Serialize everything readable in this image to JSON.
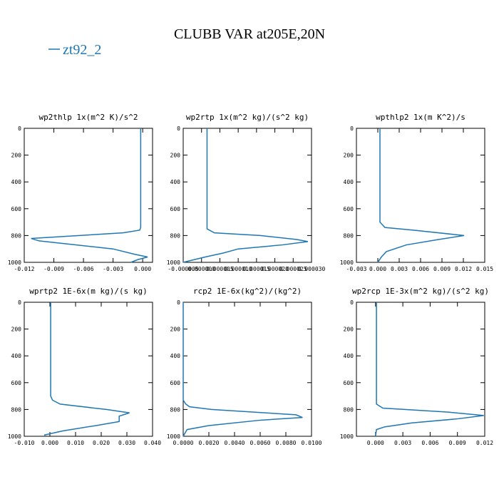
{
  "title": "CLUBB VAR at205E,20N",
  "legend": {
    "label": "zt92_2",
    "color": "#1f77b4"
  },
  "chart_data": [
    {
      "type": "line",
      "title": "wp2thlp  1x(m^2 K)/s^2",
      "color": "#1f77b4",
      "y": [
        0,
        740,
        760,
        780,
        822,
        840,
        900,
        940,
        960,
        980,
        1000
      ],
      "values": [
        -0.0002,
        -0.0002,
        -0.0003,
        -0.002,
        -0.0113,
        -0.0105,
        -0.003,
        -0.0008,
        0.0005,
        -0.0005,
        -0.0012
      ],
      "xlim": [
        -0.012,
        0.001
      ],
      "ylim": [
        1000,
        0
      ],
      "xticks": [
        -0.012,
        -0.009,
        -0.006,
        -0.003,
        {
          "value": 0,
          "label": "0.000"
        }
      ],
      "yticks": [
        0,
        200,
        400,
        600,
        800,
        1000
      ]
    },
    {
      "type": "line",
      "title": "wp2rtp  1x(m^2 kg)/(s^2 kg)",
      "color": "#1f77b4",
      "y": [
        0,
        750,
        780,
        800,
        830,
        845,
        870,
        900,
        930,
        960,
        980,
        1000
      ],
      "values": [
        1.5e-06,
        1.5e-06,
        3.5e-06,
        1.6e-05,
        2.6e-05,
        2.9e-05,
        2.2e-05,
        1e-05,
        6e-06,
        1e-06,
        -2e-06,
        -5e-06
      ],
      "xlim": [
        -5e-06,
        3e-05
      ],
      "ylim": [
        1000,
        0
      ],
      "xticks": [
        {
          "value": -5e-06,
          "label": "-0.000005"
        },
        {
          "value": 0,
          "label": "0.000000"
        },
        {
          "value": 5e-06,
          "label": "0.000005"
        },
        {
          "value": 1e-05,
          "label": "0.000010"
        },
        {
          "value": 1.5e-05,
          "label": "0.000015"
        },
        {
          "value": 2e-05,
          "label": "0.000020"
        },
        {
          "value": 2.5e-05,
          "label": "0.000025"
        },
        {
          "value": 3e-05,
          "label": "0.000030"
        }
      ],
      "yticks": [
        0,
        200,
        400,
        600,
        800,
        1000
      ]
    },
    {
      "type": "line",
      "title": "wpthlp2  1x(m K^2)/s",
      "color": "#1f77b4",
      "y": [
        0,
        700,
        740,
        760,
        800,
        830,
        870,
        920,
        960,
        1000
      ],
      "values": [
        0.0003,
        0.0003,
        0.001,
        0.005,
        0.0121,
        0.0085,
        0.004,
        0.0012,
        0.0005,
        0
      ],
      "xlim": [
        -0.003,
        0.015
      ],
      "ylim": [
        1000,
        0
      ],
      "xticks": [
        -0.003,
        {
          "value": 0,
          "label": "0.000"
        },
        0.003,
        0.006,
        0.009,
        0.012,
        0.015
      ],
      "yticks": [
        0,
        200,
        400,
        600,
        800,
        1000
      ]
    },
    {
      "type": "line",
      "title": "wprtp2  1E-6x(m kg)/(s kg)",
      "color": "#1f77b4",
      "y": [
        0,
        700,
        730,
        760,
        800,
        825,
        850,
        890,
        920,
        960,
        990,
        1000
      ],
      "values": [
        0.0003,
        0.0003,
        0.001,
        0.004,
        0.022,
        0.031,
        0.027,
        0.027,
        0.018,
        0.005,
        -0.002,
        -0.002
      ],
      "xlim": [
        -0.01,
        0.04
      ],
      "ylim": [
        1000,
        0
      ],
      "xticks": [
        {
          "value": -0.01,
          "label": "-0.010"
        },
        {
          "value": 0,
          "label": "0.000"
        },
        {
          "value": 0.01,
          "label": "0.010"
        },
        {
          "value": 0.02,
          "label": "0.020"
        },
        {
          "value": 0.03,
          "label": "0.030"
        },
        {
          "value": 0.04,
          "label": "0.040"
        }
      ],
      "yticks": [
        0,
        200,
        400,
        600,
        800,
        1000
      ]
    },
    {
      "type": "line",
      "title": "rcp2  1E-6x(kg^2)/(kg^2)",
      "color": "#1f77b4",
      "y": [
        0,
        730,
        760,
        780,
        800,
        840,
        860,
        880,
        920,
        950,
        1000
      ],
      "values": [
        0,
        0,
        0.0002,
        0.0005,
        0.0022,
        0.0088,
        0.0093,
        0.006,
        0.002,
        0.0003,
        0
      ],
      "xlim": [
        0,
        0.01
      ],
      "ylim": [
        1000,
        0
      ],
      "xticks": [
        {
          "value": 0,
          "label": "0.0000"
        },
        {
          "value": 0.002,
          "label": "0.0020"
        },
        {
          "value": 0.004,
          "label": "0.0040"
        },
        {
          "value": 0.006,
          "label": "0.0060"
        },
        {
          "value": 0.008,
          "label": "0.0080"
        },
        {
          "value": 0.01,
          "label": "0.0100"
        }
      ],
      "yticks": [
        0,
        200,
        400,
        600,
        800,
        1000
      ]
    },
    {
      "type": "line",
      "title": "wp2rcp  1E-3x(m^2 kg)/(s^2 kg)",
      "color": "#1f77b4",
      "y": [
        0,
        760,
        790,
        820,
        845,
        870,
        900,
        930,
        950,
        1000
      ],
      "values": [
        0.0001,
        0.0001,
        0.0008,
        0.008,
        0.0119,
        0.009,
        0.004,
        0.001,
        0.0001,
        0
      ],
      "xlim": [
        -0.0021,
        0.012
      ],
      "ylim": [
        1000,
        0
      ],
      "xticks": [
        {
          "value": 0,
          "label": "0.000"
        },
        0.003,
        0.006,
        0.009,
        {
          "value": 0.012,
          "label": "0.012"
        }
      ],
      "yticks": [
        0,
        200,
        400,
        600,
        800,
        1000
      ]
    }
  ]
}
